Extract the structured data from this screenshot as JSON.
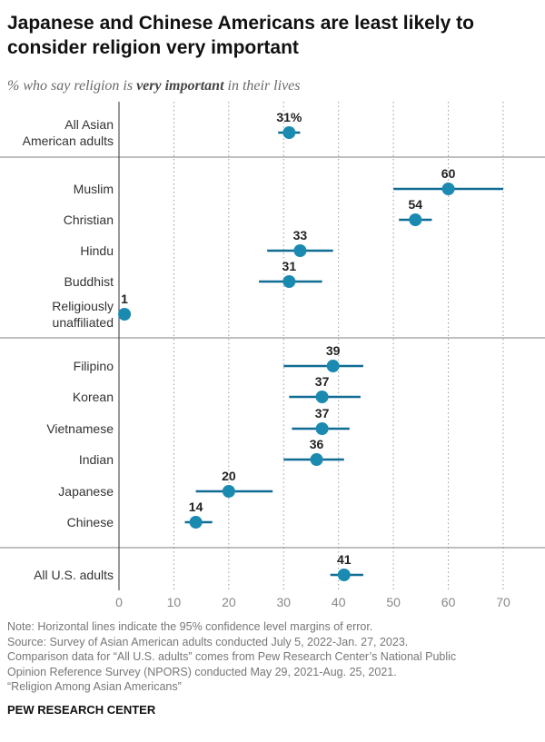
{
  "title": "Japanese and Chinese Americans are least likely to consider religion very important",
  "subtitle": {
    "before": "% who say religion is ",
    "emphasis": "very important",
    "after": " in their lives"
  },
  "colors": {
    "dot": "#1a8ab1",
    "line": "#0f6c93",
    "separator": "#555555"
  },
  "chart_data": {
    "type": "scatter",
    "orientation": "horizontal dot plot with error bars",
    "xlim": [
      0,
      70
    ],
    "xticks": [
      0,
      10,
      20,
      30,
      40,
      50,
      60,
      70
    ],
    "grid": "vertical dotted",
    "groups": [
      {
        "rows": [
          {
            "label": [
              "All Asian",
              "American adults"
            ],
            "value": 31,
            "value_label": "31%",
            "ci": [
              29,
              33
            ]
          }
        ]
      },
      {
        "rows": [
          {
            "label": [
              "Muslim"
            ],
            "value": 60,
            "value_label": "60",
            "ci": [
              50,
              70
            ]
          },
          {
            "label": [
              "Christian"
            ],
            "value": 54,
            "value_label": "54",
            "ci": [
              51,
              57
            ]
          },
          {
            "label": [
              "Hindu"
            ],
            "value": 33,
            "value_label": "33",
            "ci": [
              27,
              39
            ]
          },
          {
            "label": [
              "Buddhist"
            ],
            "value": 31,
            "value_label": "31",
            "ci": [
              25.5,
              37
            ]
          },
          {
            "label": [
              "Religiously",
              "unaffiliated"
            ],
            "value": 1,
            "value_label": "1",
            "ci": [
              1,
              1
            ]
          }
        ]
      },
      {
        "rows": [
          {
            "label": [
              "Filipino"
            ],
            "value": 39,
            "value_label": "39",
            "ci": [
              30,
              44.5
            ]
          },
          {
            "label": [
              "Korean"
            ],
            "value": 37,
            "value_label": "37",
            "ci": [
              31,
              44
            ]
          },
          {
            "label": [
              "Vietnamese"
            ],
            "value": 37,
            "value_label": "37",
            "ci": [
              31.5,
              42
            ]
          },
          {
            "label": [
              "Indian"
            ],
            "value": 36,
            "value_label": "36",
            "ci": [
              30,
              41
            ]
          },
          {
            "label": [
              "Japanese"
            ],
            "value": 20,
            "value_label": "20",
            "ci": [
              14,
              28
            ]
          },
          {
            "label": [
              "Chinese"
            ],
            "value": 14,
            "value_label": "14",
            "ci": [
              12,
              17
            ]
          }
        ]
      },
      {
        "rows": [
          {
            "label": [
              "All U.S. adults"
            ],
            "value": 41,
            "value_label": "41",
            "ci": [
              38.5,
              44.5
            ]
          }
        ]
      }
    ]
  },
  "notes": [
    "Note: Horizontal lines indicate the 95% confidence level margins of error.",
    "Source: Survey of Asian American adults conducted July 5, 2022-Jan. 27, 2023.",
    "Comparison data for “All U.S. adults” comes from Pew Research Center’s National Public",
    "Opinion Reference Survey (NPORS) conducted May 29, 2021-Aug. 25, 2021.",
    "“Religion Among Asian Americans”"
  ],
  "source_org": "PEW RESEARCH CENTER"
}
